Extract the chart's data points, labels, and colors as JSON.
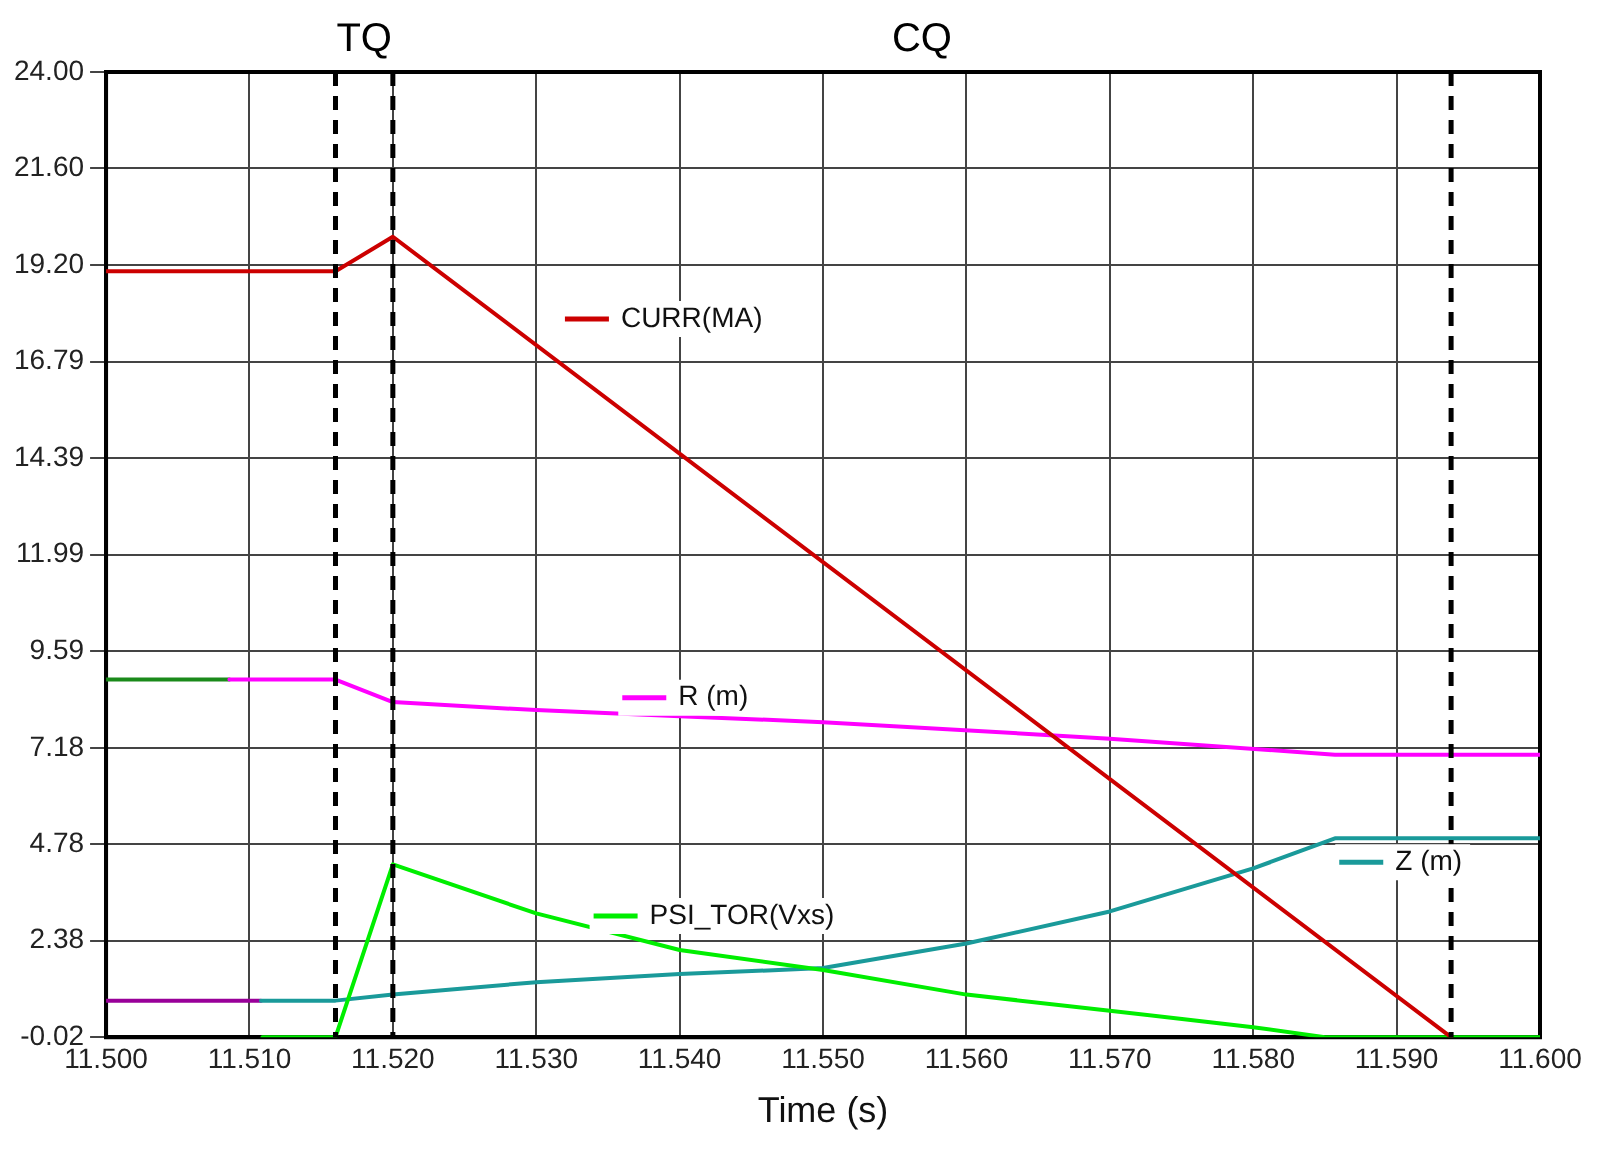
{
  "chart_data": {
    "type": "line",
    "xlabel": "Time (s)",
    "xlim": [
      11.5,
      11.6
    ],
    "xticks": [
      {
        "value": 11.5,
        "label": "11.500"
      },
      {
        "value": 11.51,
        "label": "11.510"
      },
      {
        "value": 11.52,
        "label": "11.520"
      },
      {
        "value": 11.53,
        "label": "11.530"
      },
      {
        "value": 11.54,
        "label": "11.540"
      },
      {
        "value": 11.55,
        "label": "11.550"
      },
      {
        "value": 11.56,
        "label": "11.560"
      },
      {
        "value": 11.57,
        "label": "11.570"
      },
      {
        "value": 11.58,
        "label": "11.580"
      },
      {
        "value": 11.59,
        "label": "11.590"
      },
      {
        "value": 11.6,
        "label": "11.600"
      }
    ],
    "ylim": [
      -0.02,
      24
    ],
    "yticks": [
      -0.02,
      2.38,
      4.78,
      7.18,
      9.59,
      11.99,
      14.39,
      16.79,
      {
        "value": 19.2,
        "label": "19.20"
      },
      {
        "value": 21.6,
        "label": "21.60"
      },
      {
        "value": 24,
        "label": "24.00"
      }
    ],
    "grid": true,
    "legend": "center",
    "marker": "none",
    "line_style": "solid",
    "series": [
      {
        "name": "CURR(MA)",
        "color": "#cc0000",
        "x": [
          11.5,
          11.516,
          11.52,
          11.5938
        ],
        "values": [
          19.04,
          19.04,
          19.9,
          -0.02
        ]
      },
      {
        "name": "R (m)",
        "color": "#ff00ff",
        "x": [
          11.5086,
          11.516,
          11.52,
          11.53,
          11.54,
          11.55,
          11.57,
          11.5857,
          11.6
        ],
        "values": [
          8.88,
          8.88,
          8.32,
          8.12,
          7.97,
          7.82,
          7.41,
          7.01,
          7.01
        ]
      },
      {
        "name": "PSI_TOR(Vxs)",
        "color": "#00ee00",
        "x": [
          11.5109,
          11.516,
          11.52,
          11.53,
          11.54,
          11.55,
          11.56,
          11.57,
          11.58,
          11.585,
          11.6
        ],
        "values": [
          -0.02,
          -0.02,
          4.28,
          3.06,
          2.15,
          1.65,
          1.04,
          0.64,
          0.23,
          -0.02,
          -0.02
        ]
      },
      {
        "name": "Z (m)",
        "color": "#1a9a9a",
        "x": [
          11.5108,
          11.516,
          11.52,
          11.53,
          11.54,
          11.55,
          11.56,
          11.57,
          11.58,
          11.5857,
          11.6
        ],
        "values": [
          0.89,
          0.89,
          1.04,
          1.35,
          1.55,
          1.7,
          2.31,
          3.11,
          4.18,
          4.93,
          4.93
        ]
      },
      {
        "color": "#1a8a1a",
        "x": [
          11.5,
          11.5086
        ],
        "values": [
          8.88,
          8.88
        ]
      },
      {
        "color": "#990099",
        "x": [
          11.5,
          11.5108
        ],
        "values": [
          0.89,
          0.89
        ]
      }
    ],
    "ref_lines": [
      {
        "axis": "x",
        "value": 11.516,
        "color": "#000000",
        "line_style": "dashed"
      },
      {
        "axis": "x",
        "value": 11.52,
        "color": "#000000",
        "line_style": "dashed"
      },
      {
        "axis": "x",
        "value": 11.5938,
        "color": "#000000",
        "line_style": "dashed"
      }
    ],
    "annotations": [
      "TQ",
      "CQ"
    ]
  }
}
